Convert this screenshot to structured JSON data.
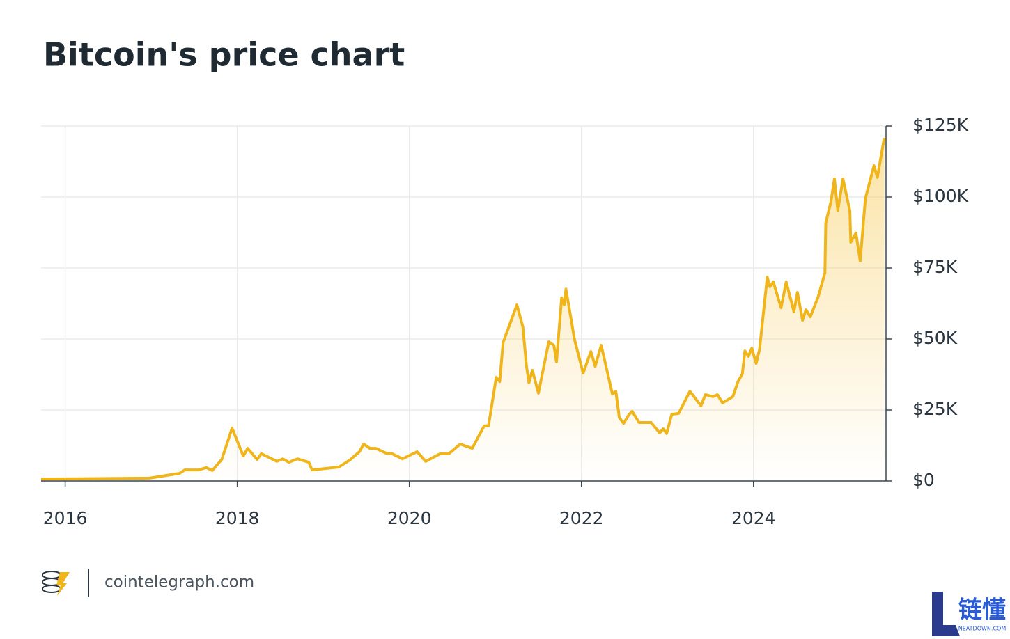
{
  "chart_data": {
    "type": "line",
    "title": "Bitcoin's price chart",
    "color": "#f0b51b",
    "x": [
      2015.72,
      2016.98,
      2017.33,
      2017.39,
      2017.55,
      2017.64,
      2017.71,
      2017.82,
      2017.94,
      2018.07,
      2018.12,
      2018.23,
      2018.28,
      2018.46,
      2018.53,
      2018.6,
      2018.7,
      2018.83,
      2018.87,
      2019.18,
      2019.31,
      2019.42,
      2019.47,
      2019.54,
      2019.61,
      2019.73,
      2019.8,
      2019.92,
      2020.09,
      2020.19,
      2020.36,
      2020.46,
      2020.59,
      2020.73,
      2020.87,
      2020.92,
      2021.01,
      2021.05,
      2021.09,
      2021.25,
      2021.32,
      2021.36,
      2021.39,
      2021.43,
      2021.5,
      2021.62,
      2021.68,
      2021.71,
      2021.77,
      2021.8,
      2021.82,
      2021.92,
      2022.02,
      2022.11,
      2022.16,
      2022.23,
      2022.36,
      2022.4,
      2022.44,
      2022.49,
      2022.55,
      2022.59,
      2022.67,
      2022.81,
      2022.91,
      2022.95,
      2022.99,
      2023.05,
      2023.13,
      2023.26,
      2023.39,
      2023.44,
      2023.53,
      2023.58,
      2023.64,
      2023.76,
      2023.82,
      2023.87,
      2023.9,
      2023.94,
      2023.98,
      2024.03,
      2024.07,
      2024.16,
      2024.19,
      2024.23,
      2024.32,
      2024.38,
      2024.47,
      2024.51,
      2024.57,
      2024.61,
      2024.66,
      2024.75,
      2024.83,
      2024.84,
      2024.9,
      2024.94,
      2024.98,
      2025.04,
      2025.12,
      2025.13,
      2025.19,
      2025.24,
      2025.3,
      2025.4,
      2025.44,
      2025.52
    ],
    "values": [
      700,
      1000,
      2700,
      3900,
      3900,
      4700,
      3700,
      7600,
      18600,
      8800,
      11500,
      7600,
      9600,
      6900,
      7800,
      6600,
      7800,
      6600,
      3900,
      4900,
      7400,
      10300,
      13000,
      11500,
      11500,
      9800,
      9600,
      7800,
      10300,
      6900,
      9600,
      9600,
      13000,
      11500,
      19400,
      19400,
      36500,
      35000,
      48800,
      62000,
      54200,
      40700,
      34600,
      39000,
      30900,
      49000,
      47800,
      41900,
      64500,
      62000,
      67600,
      49800,
      38000,
      45600,
      40400,
      47800,
      30600,
      31600,
      22300,
      20300,
      23300,
      24500,
      20600,
      20600,
      16900,
      18400,
      16700,
      23500,
      23800,
      31600,
      26500,
      30400,
      29700,
      30400,
      27500,
      29700,
      35000,
      37700,
      45800,
      43900,
      46800,
      41400,
      46300,
      71800,
      68400,
      70100,
      61000,
      70100,
      59600,
      66400,
      56600,
      60300,
      57800,
      64700,
      73300,
      90900,
      98300,
      106400,
      95300,
      106400,
      95100,
      84100,
      87300,
      77500,
      99500,
      111000,
      106900,
      120800
    ],
    "xlim": [
      2015.72,
      2025.54
    ],
    "xticks": [
      2016,
      2018,
      2020,
      2022,
      2024
    ],
    "ylim": [
      0,
      125000
    ],
    "yticks": [
      {
        "value": 0,
        "label": "$0"
      },
      {
        "value": 25000,
        "label": "$25K"
      },
      {
        "value": 50000,
        "label": "$50K"
      },
      {
        "value": 75000,
        "label": "$75K"
      },
      {
        "value": 100000,
        "label": "$100K"
      },
      {
        "value": 125000,
        "label": "$125K"
      }
    ],
    "grid": true
  },
  "source": "cointelegraph.com",
  "watermark": {
    "title": "链懂",
    "subtitle": "NEATDOWN.COM"
  }
}
